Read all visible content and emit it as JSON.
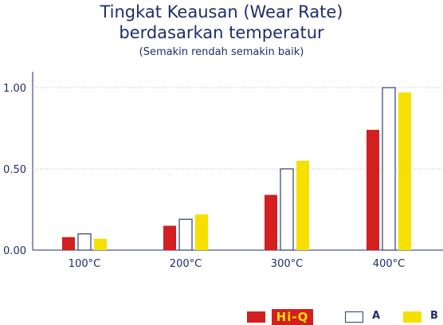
{
  "header": {
    "title_line1": "Tingkat Keausan (Wear Rate)",
    "title_line2": "berdasarkan temperatur",
    "subtitle": "(Semakin rendah semakin baik)"
  },
  "legend": {
    "items": [
      {
        "label": "Hi-Q",
        "color": "#d31f1f"
      },
      {
        "label": "A",
        "color": "#ffffff",
        "border": "#2d3d7a"
      },
      {
        "label": "B",
        "color": "#f6e000"
      }
    ]
  },
  "chart_data": {
    "type": "bar",
    "title": "Tingkat Keausan (Wear Rate) berdasarkan temperatur",
    "subtitle": "(Semakin rendah semakin baik)",
    "categories": [
      "100°C",
      "200°C",
      "300°C",
      "400°C"
    ],
    "series": [
      {
        "name": "Hi-Q",
        "values": [
          0.08,
          0.15,
          0.34,
          0.74
        ],
        "color": "#d31f1f"
      },
      {
        "name": "A",
        "values": [
          0.1,
          0.19,
          0.5,
          1.0
        ],
        "color": "#ffffff",
        "border": "#2d3d7a"
      },
      {
        "name": "B",
        "values": [
          0.07,
          0.22,
          0.55,
          0.97
        ],
        "color": "#f6e000"
      }
    ],
    "ylim": [
      0,
      1.0
    ],
    "yticks": [
      "0.00",
      "0.50",
      "1.00"
    ],
    "ytick_values": [
      0,
      0.5,
      1.0
    ],
    "grid": true,
    "legend_position": "bottom-right"
  }
}
